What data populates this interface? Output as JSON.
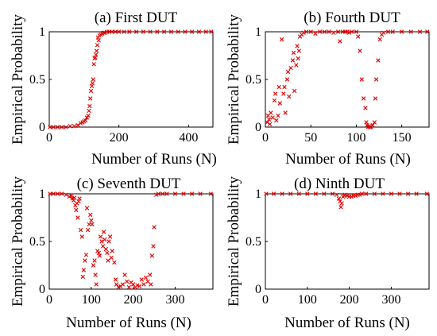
{
  "marker_color": "#e00000",
  "chart_data": [
    {
      "type": "scatter",
      "title": "(a) First DUT",
      "xlabel": "Number of Runs (N)",
      "ylabel": "Empirical Probability",
      "xlim": [
        0,
        470
      ],
      "ylim": [
        0,
        1
      ],
      "xticks": [
        0,
        200,
        400
      ],
      "yticks": [
        0,
        0.5,
        1
      ],
      "ytick_labels": [
        "0",
        "0.5",
        "1"
      ],
      "grid": false,
      "legend": "none",
      "series": [
        {
          "marker": "x",
          "x": [
            2,
            12,
            24,
            36,
            48,
            60,
            72,
            82,
            90,
            96,
            100,
            104,
            108,
            112,
            114,
            116,
            118,
            120,
            122,
            124,
            126,
            128,
            130,
            132,
            134,
            136,
            138,
            140,
            142,
            144,
            148,
            152,
            156,
            160,
            166,
            172,
            180,
            190,
            200,
            215,
            230,
            250,
            270,
            290,
            310,
            330,
            350,
            370,
            390,
            410,
            430,
            450,
            465
          ],
          "y": [
            0.0,
            0.0,
            0.0,
            0.0,
            0.0,
            0.01,
            0.01,
            0.02,
            0.04,
            0.05,
            0.06,
            0.07,
            0.1,
            0.12,
            0.17,
            0.22,
            0.3,
            0.38,
            0.43,
            0.46,
            0.5,
            0.66,
            0.72,
            0.73,
            0.76,
            0.8,
            0.86,
            0.94,
            0.91,
            0.96,
            0.97,
            0.98,
            0.99,
            0.99,
            1.0,
            1.0,
            1.0,
            1.0,
            1.0,
            1.0,
            1.0,
            1.0,
            1.0,
            1.0,
            1.0,
            1.0,
            1.0,
            1.0,
            1.0,
            1.0,
            1.0,
            1.0,
            1.0
          ]
        }
      ]
    },
    {
      "type": "scatter",
      "title": "(b) Fourth DUT",
      "xlabel": "Number of Runs (N)",
      "ylabel": "Empirical Probability",
      "xlim": [
        0,
        180
      ],
      "ylim": [
        0,
        1
      ],
      "xticks": [
        0,
        50,
        100,
        150
      ],
      "yticks": [
        0,
        0.5,
        1
      ],
      "ytick_labels": [
        "0",
        "0.5",
        "1"
      ],
      "grid": false,
      "legend": "none",
      "series": [
        {
          "marker": "x",
          "x": [
            2,
            3,
            4,
            5,
            6,
            8,
            10,
            11,
            12,
            14,
            15,
            16,
            18,
            20,
            21,
            22,
            24,
            25,
            26,
            28,
            30,
            31,
            32,
            34,
            35,
            36,
            37,
            38,
            40,
            42,
            45,
            50,
            55,
            60,
            65,
            70,
            75,
            80,
            82,
            85,
            88,
            90,
            92,
            95,
            100,
            102,
            104,
            106,
            108,
            110,
            111,
            112,
            113,
            114,
            115,
            116,
            118,
            120,
            121,
            122,
            124,
            126,
            128,
            130,
            135,
            140,
            150,
            160,
            170,
            178
          ],
          "y": [
            0.05,
            0.12,
            0.08,
            0.03,
            0.15,
            0.1,
            0.28,
            0.35,
            0.07,
            0.12,
            0.42,
            0.25,
            0.92,
            0.35,
            0.42,
            0.15,
            0.5,
            0.58,
            0.32,
            0.62,
            0.7,
            0.78,
            0.38,
            0.65,
            0.85,
            0.72,
            0.8,
            0.95,
            0.97,
            0.99,
            1.0,
            1.0,
            0.98,
            1.0,
            1.0,
            1.0,
            0.99,
            1.0,
            0.9,
            1.0,
            1.0,
            1.0,
            0.99,
            1.0,
            1.0,
            0.95,
            0.8,
            0.5,
            0.3,
            0.2,
            0.05,
            0.02,
            0.0,
            0.01,
            0.0,
            0.0,
            0.02,
            0.05,
            0.3,
            0.5,
            0.7,
            0.92,
            0.97,
            0.99,
            1.0,
            1.0,
            1.0,
            1.0,
            1.0,
            1.0
          ]
        }
      ]
    },
    {
      "type": "scatter",
      "title": "(c) Seventh DUT",
      "xlabel": "Number of Runs (N)",
      "ylabel": "Empirical Probability",
      "xlim": [
        0,
        390
      ],
      "ylim": [
        0,
        1
      ],
      "xticks": [
        0,
        100,
        200,
        300
      ],
      "yticks": [
        0,
        0.5,
        1
      ],
      "ytick_labels": [
        "0",
        "0.5",
        "1"
      ],
      "grid": false,
      "legend": "none",
      "series": [
        {
          "marker": "x",
          "x": [
            2,
            10,
            20,
            30,
            40,
            48,
            52,
            55,
            58,
            60,
            62,
            64,
            66,
            68,
            70,
            72,
            75,
            78,
            80,
            82,
            85,
            88,
            90,
            92,
            95,
            98,
            100,
            102,
            105,
            108,
            110,
            112,
            115,
            118,
            120,
            122,
            125,
            128,
            130,
            132,
            135,
            138,
            140,
            142,
            145,
            148,
            150,
            155,
            158,
            160,
            165,
            170,
            175,
            180,
            185,
            190,
            195,
            200,
            205,
            210,
            215,
            220,
            225,
            230,
            235,
            240,
            242,
            245,
            248,
            250,
            255,
            260,
            270,
            280,
            300,
            320,
            340,
            360,
            385
          ],
          "y": [
            1.0,
            1.0,
            1.0,
            1.0,
            0.99,
            0.97,
            0.98,
            0.95,
            0.93,
            0.96,
            0.88,
            0.83,
            0.9,
            0.75,
            0.92,
            0.95,
            0.62,
            0.55,
            0.13,
            0.2,
            0.3,
            0.36,
            0.85,
            0.62,
            0.68,
            0.78,
            0.72,
            0.68,
            0.25,
            0.3,
            0.15,
            0.05,
            0.4,
            0.38,
            0.35,
            0.55,
            0.5,
            0.45,
            0.6,
            0.52,
            0.42,
            0.38,
            0.3,
            0.5,
            0.55,
            0.33,
            0.4,
            0.28,
            0.1,
            0.05,
            0.02,
            0.03,
            0.05,
            0.15,
            0.08,
            0.02,
            0.07,
            0.05,
            0.02,
            0.04,
            0.03,
            0.1,
            0.05,
            0.12,
            0.08,
            0.15,
            0.05,
            0.35,
            0.45,
            0.65,
            0.99,
            1.0,
            1.0,
            1.0,
            1.0,
            1.0,
            1.0,
            1.0,
            1.0
          ]
        }
      ]
    },
    {
      "type": "scatter",
      "title": "(d) Ninth DUT",
      "xlabel": "Number of Runs (N)",
      "ylabel": "Empirical Probability",
      "xlim": [
        0,
        390
      ],
      "ylim": [
        0,
        1
      ],
      "xticks": [
        0,
        100,
        200,
        300
      ],
      "yticks": [
        0,
        0.5,
        1
      ],
      "ytick_labels": [
        "0",
        "0.5",
        "1"
      ],
      "grid": false,
      "legend": "none",
      "series": [
        {
          "marker": "x",
          "x": [
            2,
            20,
            40,
            60,
            80,
            100,
            120,
            140,
            160,
            170,
            175,
            178,
            180,
            182,
            185,
            188,
            190,
            195,
            200,
            205,
            210,
            215,
            220,
            225,
            230,
            240,
            260,
            280,
            300,
            320,
            340,
            360,
            385
          ],
          "y": [
            1.0,
            1.0,
            1.0,
            1.0,
            1.0,
            1.0,
            1.0,
            1.0,
            1.0,
            0.99,
            0.95,
            0.92,
            0.86,
            0.9,
            0.97,
            0.98,
            0.99,
            0.98,
            0.97,
            0.97,
            0.98,
            0.98,
            0.99,
            0.99,
            1.0,
            1.0,
            1.0,
            1.0,
            1.0,
            1.0,
            1.0,
            1.0,
            1.0
          ]
        }
      ]
    }
  ]
}
